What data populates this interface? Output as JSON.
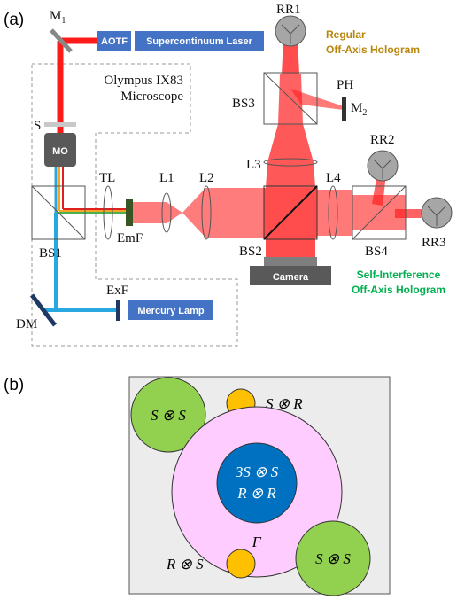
{
  "panel_a": {
    "label": "(a)",
    "m1": {
      "text": "M",
      "sub": "1"
    },
    "m2": {
      "text": "M",
      "sub": "2"
    },
    "aotf": "AOTF",
    "laser": "Supercontinuum Laser",
    "microscope": [
      "Olympus IX83",
      "Microscope"
    ],
    "s": "S",
    "mo": "MO",
    "tl": "TL",
    "l1": "L1",
    "l2": "L2",
    "l3": "L3",
    "l4": "L4",
    "bs1": "BS1",
    "bs2": "BS2",
    "bs3": "BS3",
    "bs4": "BS4",
    "emf": "EmF",
    "rr1": "RR1",
    "rr2": "RR2",
    "rr3": "RR3",
    "ph": "PH",
    "regular_hologram": [
      "Regular",
      "Off-Axis Hologram"
    ],
    "self_interference_hologram": [
      "Self-Interference",
      "Off-Axis Hologram"
    ],
    "camera": "Camera",
    "exf": "ExF",
    "dm": "DM",
    "mercury_lamp": "Mercury Lamp"
  },
  "panel_b": {
    "label": "(b)",
    "top_left": "S ⊗ S",
    "top_right": "S ⊗ R",
    "center": [
      "3S ⊗ S",
      "R ⊗ R"
    ],
    "f": "F",
    "bottom_right": "S ⊗ S",
    "bottom_left": "R ⊗ S"
  }
}
